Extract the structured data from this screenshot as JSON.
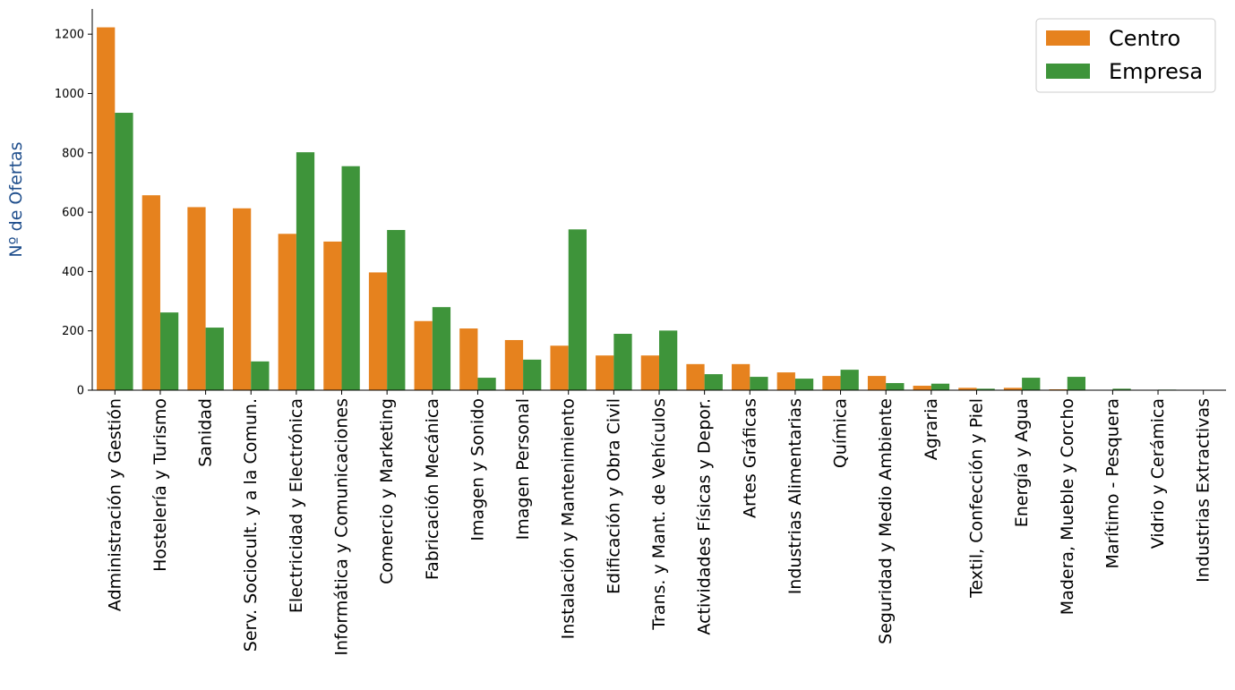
{
  "chart_data": {
    "type": "bar",
    "ylabel": "Nº de Ofertas",
    "ylabel_color": "#1f4e8c",
    "ylim": [
      0,
      1285
    ],
    "yticks": [
      0,
      200,
      400,
      600,
      800,
      1000,
      1200
    ],
    "legend_position": "top-right",
    "grid": false,
    "categories": [
      "Administración y Gestión",
      "Hostelería y Turismo",
      "Sanidad",
      "Serv. Sociocult. y a la Comun.",
      "Electricidad y Electrónica",
      "Informática y Comunicaciones",
      "Comercio y Marketing",
      "Fabricación Mecánica",
      "Imagen y Sonido",
      "Imagen Personal",
      "Instalación y Mantenimiento",
      "Edificación y Obra Civil",
      "Trans. y Mant. de Vehículos",
      "Actividades Físicas y Depor.",
      "Artes Gráficas",
      "Industrias Alimentarias",
      "Química",
      "Seguridad y Medio Ambiente",
      "Agraria",
      "Textil, Confección y Piel",
      "Energía y Agua",
      "Madera, Mueble y Corcho",
      "Marítimo - Pesquera",
      "Vidrio y Cerámica",
      "Industrias Extractivas"
    ],
    "series": [
      {
        "name": "Centro",
        "color": "#e6821e",
        "values": [
          1223,
          657,
          617,
          613,
          527,
          501,
          397,
          233,
          208,
          169,
          150,
          117,
          117,
          88,
          88,
          60,
          48,
          48,
          15,
          8,
          8,
          3,
          0,
          0,
          0
        ]
      },
      {
        "name": "Empresa",
        "color": "#3e943a",
        "values": [
          935,
          262,
          211,
          97,
          802,
          755,
          540,
          280,
          42,
          103,
          542,
          190,
          201,
          54,
          45,
          39,
          69,
          24,
          22,
          5,
          42,
          45,
          5,
          2,
          0
        ]
      }
    ]
  }
}
